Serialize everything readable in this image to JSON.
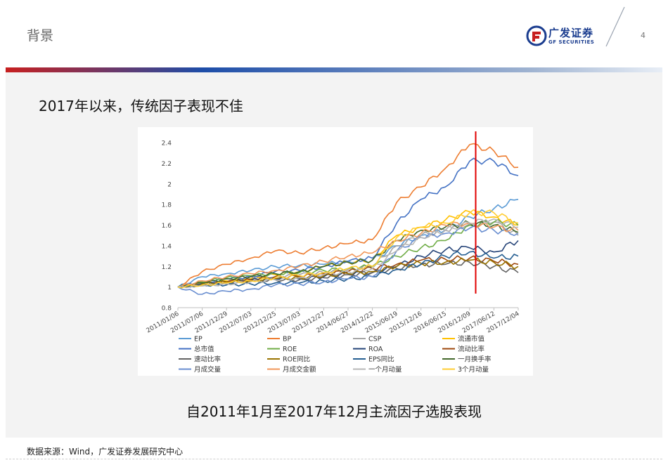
{
  "header": {
    "title": "背景",
    "brand_cn": "广发证券",
    "brand_en": "GF SECURITIES",
    "page_number": "4"
  },
  "slide": {
    "heading": "2017年以来，传统因子表现不佳",
    "caption": "自2011年1月至2017年12月主流因子选股表现",
    "source": "数据来源：Wind，广发证券发展研究中心"
  },
  "colors": {
    "brand_blue": "#1b3d8f",
    "brand_red": "#c71f1f",
    "marker_line": "#e00000"
  },
  "chart_data": {
    "type": "line",
    "x": [
      "2011/01/06",
      "2011/07/06",
      "2011/12/29",
      "2012/07/03",
      "2012/12/25",
      "2013/07/03",
      "2013/12/27",
      "2014/06/27",
      "2014/12/22",
      "2015/06/19",
      "2015/12/16",
      "2016/06/15",
      "2016/12/09",
      "2017/06/12",
      "2017/12/04"
    ],
    "ylim": [
      0.8,
      2.4
    ],
    "yticks": [
      "2.4",
      "2.2",
      "2",
      "1.8",
      "1.6",
      "1.4",
      "1.2",
      "1",
      "0.8"
    ],
    "vertical_marker_x": "2017/01",
    "legend_position": "bottom",
    "series": [
      {
        "name": "EP",
        "color": "#5b9bd5",
        "values": [
          1.0,
          1.1,
          1.13,
          1.16,
          1.2,
          1.21,
          1.22,
          1.25,
          1.26,
          1.4,
          1.5,
          1.55,
          1.68,
          1.76,
          1.85
        ]
      },
      {
        "name": "BP",
        "color": "#ed7d31",
        "values": [
          1.0,
          1.15,
          1.22,
          1.28,
          1.35,
          1.33,
          1.38,
          1.42,
          1.46,
          1.82,
          1.97,
          2.15,
          2.38,
          2.32,
          2.16
        ]
      },
      {
        "name": "CSP",
        "color": "#a5a5a5",
        "values": [
          1.0,
          1.03,
          1.05,
          1.08,
          1.1,
          1.12,
          1.14,
          1.17,
          1.2,
          1.4,
          1.5,
          1.55,
          1.61,
          1.63,
          1.5
        ]
      },
      {
        "name": "流通市值",
        "color": "#ffc000",
        "values": [
          1.0,
          1.03,
          1.06,
          1.08,
          1.12,
          1.15,
          1.2,
          1.24,
          1.26,
          1.5,
          1.58,
          1.65,
          1.73,
          1.68,
          1.6
        ]
      },
      {
        "name": "总市值",
        "color": "#4472c4",
        "values": [
          1.0,
          1.04,
          1.08,
          1.1,
          1.15,
          1.16,
          1.2,
          1.25,
          1.28,
          1.62,
          1.85,
          1.97,
          2.22,
          2.22,
          2.08
        ]
      },
      {
        "name": "ROE",
        "color": "#70ad47",
        "values": [
          1.0,
          1.05,
          1.09,
          1.11,
          1.13,
          1.14,
          1.16,
          1.18,
          1.2,
          1.3,
          1.38,
          1.45,
          1.6,
          1.63,
          1.6
        ]
      },
      {
        "name": "ROA",
        "color": "#264478",
        "values": [
          1.0,
          1.03,
          1.05,
          1.07,
          1.08,
          1.08,
          1.1,
          1.13,
          1.14,
          1.2,
          1.3,
          1.36,
          1.38,
          1.34,
          1.45
        ]
      },
      {
        "name": "流动比率",
        "color": "#9e480e",
        "values": [
          1.0,
          1.02,
          1.05,
          1.07,
          1.1,
          1.1,
          1.13,
          1.15,
          1.18,
          1.22,
          1.26,
          1.27,
          1.28,
          1.25,
          1.22
        ]
      },
      {
        "name": "速动比率",
        "color": "#636363",
        "values": [
          1.0,
          1.02,
          1.04,
          1.06,
          1.07,
          1.07,
          1.09,
          1.12,
          1.14,
          1.18,
          1.22,
          1.22,
          1.24,
          1.2,
          1.14
        ]
      },
      {
        "name": "ROE同比",
        "color": "#997300",
        "values": [
          1.0,
          1.03,
          1.05,
          1.06,
          1.08,
          1.09,
          1.11,
          1.13,
          1.15,
          1.2,
          1.23,
          1.24,
          1.26,
          1.24,
          1.2
        ]
      },
      {
        "name": "EPS同比",
        "color": "#255e91",
        "values": [
          1.0,
          1.02,
          1.02,
          1.03,
          1.04,
          1.04,
          1.06,
          1.08,
          1.1,
          1.17,
          1.22,
          1.3,
          1.34,
          1.28,
          1.3
        ]
      },
      {
        "name": "一月换手率",
        "color": "#43682b",
        "values": [
          1.0,
          1.04,
          1.08,
          1.1,
          1.13,
          1.15,
          1.2,
          1.24,
          1.26,
          1.45,
          1.55,
          1.58,
          1.62,
          1.6,
          1.53
        ]
      },
      {
        "name": "月成交量",
        "color": "#698ed0",
        "values": [
          1.0,
          0.93,
          0.96,
          0.98,
          1.02,
          1.03,
          1.05,
          1.08,
          1.1,
          1.35,
          1.48,
          1.52,
          1.57,
          1.55,
          1.52
        ]
      },
      {
        "name": "月成交金额",
        "color": "#f1975a",
        "values": [
          1.0,
          1.06,
          1.1,
          1.13,
          1.16,
          1.2,
          1.25,
          1.3,
          1.33,
          1.45,
          1.52,
          1.6,
          1.62,
          1.58,
          1.55
        ]
      },
      {
        "name": "一个月动量",
        "color": "#b7b7b7",
        "values": [
          1.0,
          1.01,
          1.03,
          1.05,
          1.07,
          1.09,
          1.12,
          1.15,
          1.18,
          1.35,
          1.48,
          1.55,
          1.62,
          1.66,
          1.58
        ]
      },
      {
        "name": "3个月动量",
        "color": "#ffcd33",
        "values": [
          1.0,
          1.02,
          1.04,
          1.06,
          1.09,
          1.11,
          1.14,
          1.18,
          1.2,
          1.48,
          1.58,
          1.62,
          1.72,
          1.72,
          1.62
        ]
      }
    ]
  }
}
